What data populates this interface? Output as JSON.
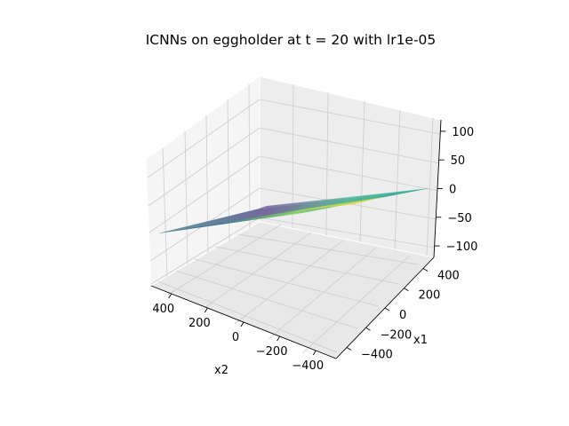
{
  "chart_data": {
    "type": "surface",
    "title": "ICNNs on eggholder at t = 20 with lr1e-05",
    "axes": {
      "x1": {
        "label": "x1",
        "range": [
          -512,
          512
        ],
        "ticks": [
          400,
          200,
          0,
          -200,
          -400
        ],
        "tick_labels": [
          "400",
          "200",
          "0",
          "−200",
          "−400"
        ]
      },
      "x2": {
        "label": "x2",
        "range": [
          -512,
          512
        ],
        "ticks": [
          400,
          200,
          0,
          -200,
          -400
        ],
        "tick_labels": [
          "400",
          "200",
          "0",
          "−200",
          "−400"
        ]
      },
      "z": {
        "label": "",
        "range": [
          -120,
          120
        ],
        "ticks": [
          100,
          50,
          0,
          -50,
          -100
        ],
        "tick_labels": [
          "100",
          "50",
          "0",
          "−50",
          "−100"
        ]
      }
    },
    "grid": true,
    "colormap": "viridis",
    "surface": {
      "description_values": "approximately planar fit",
      "corners": [
        {
          "x1": -512,
          "x2": 512,
          "z": -12
        },
        {
          "x1": 512,
          "x2": 512,
          "z": 5
        },
        {
          "x1": 512,
          "x2": -512,
          "z": 0
        },
        {
          "x1": -512,
          "x2": -512,
          "z": -25
        }
      ]
    }
  },
  "colors": {
    "pane": "#f2f2f2",
    "pane_dark": "#ebebeb",
    "grid": "#cfcfcf",
    "viridis": [
      "#440154",
      "#3b528b",
      "#21918c",
      "#5ec962",
      "#fde725"
    ]
  }
}
